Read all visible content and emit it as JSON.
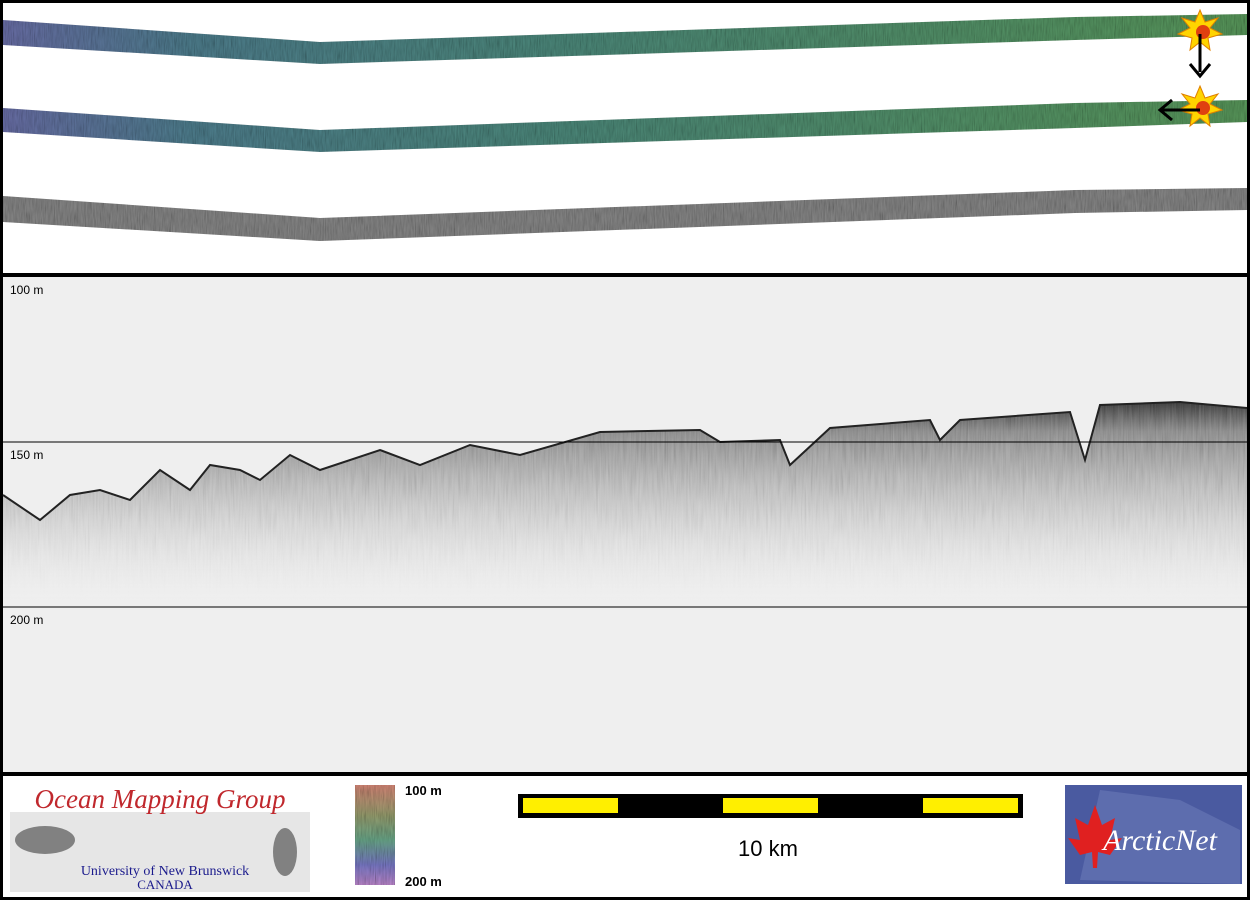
{
  "profile": {
    "ylim": [
      100,
      250
    ],
    "yticks": [
      {
        "value": 100,
        "label": "100 m"
      },
      {
        "value": 150,
        "label": "150 m"
      },
      {
        "value": 200,
        "label": "200 m"
      }
    ]
  },
  "colorbar": {
    "top_label": "100 m",
    "bottom_label": "200 m"
  },
  "scale_bar": {
    "label": "10 km"
  },
  "logos": {
    "omg_title": "Ocean Mapping Group",
    "omg_university": "University of New Brunswick",
    "omg_country": "CANADA",
    "arcticnet": "ArcticNet"
  }
}
